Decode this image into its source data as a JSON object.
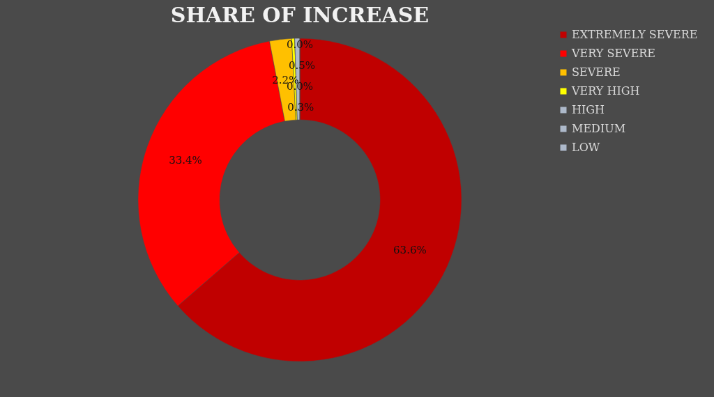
{
  "chart_data": {
    "type": "donut",
    "title": "SHARE OF INCREASE",
    "categories": [
      "EXTREMELY SEVERE",
      "VERY SEVERE",
      "SEVERE",
      "VERY HIGH",
      "HIGH",
      "MEDIUM",
      "LOW"
    ],
    "values": [
      63.6,
      33.4,
      2.2,
      0.3,
      0.0,
      0.5,
      0.0
    ],
    "value_labels": [
      "63.6%",
      "33.4%",
      "2.2%",
      "0.3%",
      "0.0%",
      "0.5%",
      "0.0%"
    ],
    "colors": [
      "#c00000",
      "#ff0000",
      "#ffc000",
      "#ffff00",
      "#adb9ca",
      "#adb9ca",
      "#adb9ca"
    ],
    "legend": "right"
  }
}
